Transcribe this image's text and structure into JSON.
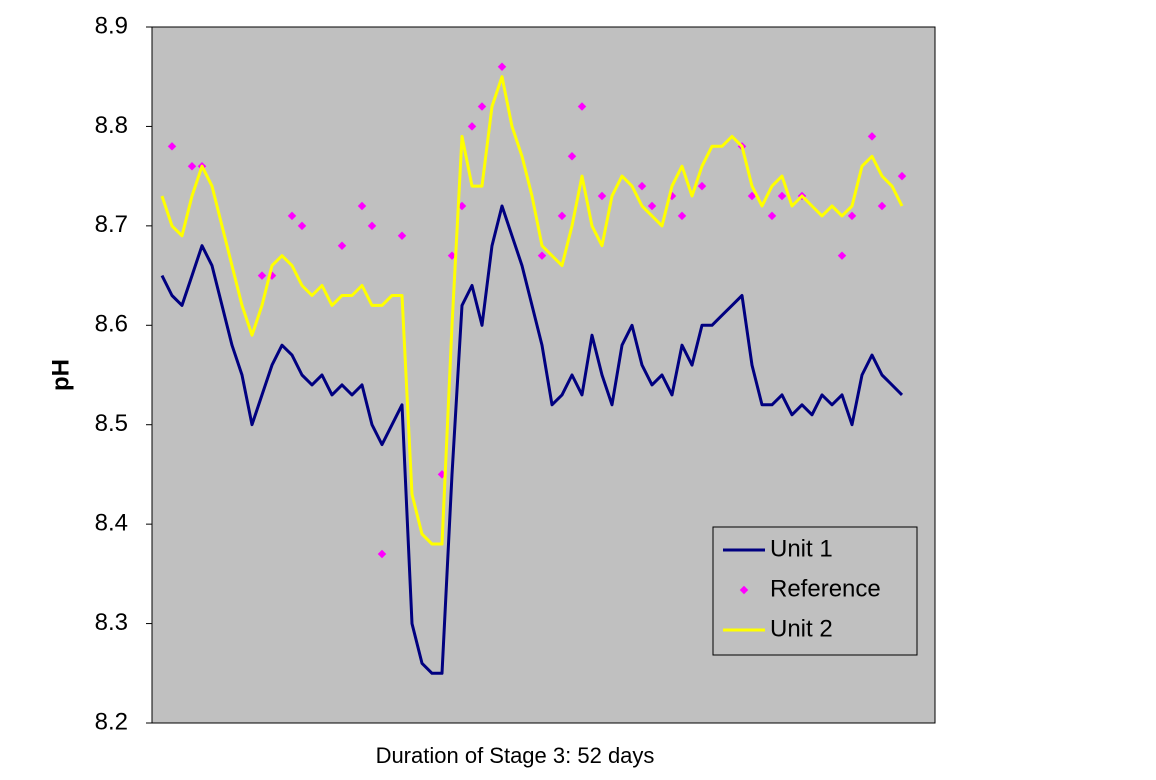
{
  "chart_data": {
    "type": "line",
    "ylabel": "pH",
    "xlabel": "Duration of Stage 3: 52 days",
    "ylim": [
      8.2,
      8.9
    ],
    "yticks": [
      8.2,
      8.3,
      8.4,
      8.5,
      8.6,
      8.7,
      8.8,
      8.9
    ],
    "legend": "lower right",
    "background": "#c0c0c0",
    "series": [
      {
        "name": "Unit 1",
        "color": "#000080",
        "kind": "line",
        "values": [
          8.65,
          8.63,
          8.62,
          8.65,
          8.68,
          8.66,
          8.62,
          8.58,
          8.55,
          8.5,
          8.53,
          8.56,
          8.58,
          8.57,
          8.55,
          8.54,
          8.55,
          8.53,
          8.54,
          8.53,
          8.54,
          8.5,
          8.48,
          8.5,
          8.52,
          8.3,
          8.26,
          8.25,
          8.25,
          8.45,
          8.62,
          8.64,
          8.6,
          8.68,
          8.72,
          8.69,
          8.66,
          8.62,
          8.58,
          8.52,
          8.53,
          8.55,
          8.53,
          8.59,
          8.55,
          8.52,
          8.58,
          8.6,
          8.56,
          8.54,
          8.55,
          8.53,
          8.58,
          8.56,
          8.6,
          8.6,
          8.61,
          8.62,
          8.63,
          8.56,
          8.52,
          8.52,
          8.53,
          8.51,
          8.52,
          8.51,
          8.53,
          8.52,
          8.53,
          8.5,
          8.55,
          8.57,
          8.55,
          8.54,
          8.53
        ]
      },
      {
        "name": "Reference",
        "color": "#ff00ff",
        "kind": "markers",
        "values": [
          null,
          8.78,
          null,
          8.76,
          8.76,
          null,
          null,
          null,
          null,
          null,
          8.65,
          8.65,
          null,
          8.71,
          8.7,
          null,
          null,
          null,
          8.68,
          null,
          8.72,
          8.7,
          8.37,
          null,
          8.69,
          null,
          null,
          null,
          8.45,
          8.67,
          8.72,
          8.8,
          8.82,
          null,
          8.86,
          null,
          null,
          null,
          8.67,
          null,
          8.71,
          8.77,
          8.82,
          null,
          8.73,
          null,
          null,
          null,
          8.74,
          8.72,
          null,
          8.73,
          8.71,
          null,
          8.74,
          null,
          null,
          null,
          8.78,
          8.73,
          null,
          8.71,
          8.73,
          null,
          8.73,
          null,
          null,
          null,
          8.67,
          8.71,
          null,
          8.79,
          8.72,
          null,
          8.75
        ]
      },
      {
        "name": "Unit 2",
        "color": "#ffff00",
        "kind": "line",
        "values": [
          8.73,
          8.7,
          8.69,
          8.73,
          8.76,
          8.74,
          8.7,
          8.66,
          8.62,
          8.59,
          8.62,
          8.66,
          8.67,
          8.66,
          8.64,
          8.63,
          8.64,
          8.62,
          8.63,
          8.63,
          8.64,
          8.62,
          8.62,
          8.63,
          8.63,
          8.43,
          8.39,
          8.38,
          8.38,
          8.6,
          8.79,
          8.74,
          8.74,
          8.82,
          8.85,
          8.8,
          8.77,
          8.73,
          8.68,
          8.67,
          8.66,
          8.7,
          8.75,
          8.7,
          8.68,
          8.73,
          8.75,
          8.74,
          8.72,
          8.71,
          8.7,
          8.74,
          8.76,
          8.73,
          8.76,
          8.78,
          8.78,
          8.79,
          8.78,
          8.74,
          8.72,
          8.74,
          8.75,
          8.72,
          8.73,
          8.72,
          8.71,
          8.72,
          8.71,
          8.72,
          8.76,
          8.77,
          8.75,
          8.74,
          8.72
        ]
      }
    ]
  }
}
